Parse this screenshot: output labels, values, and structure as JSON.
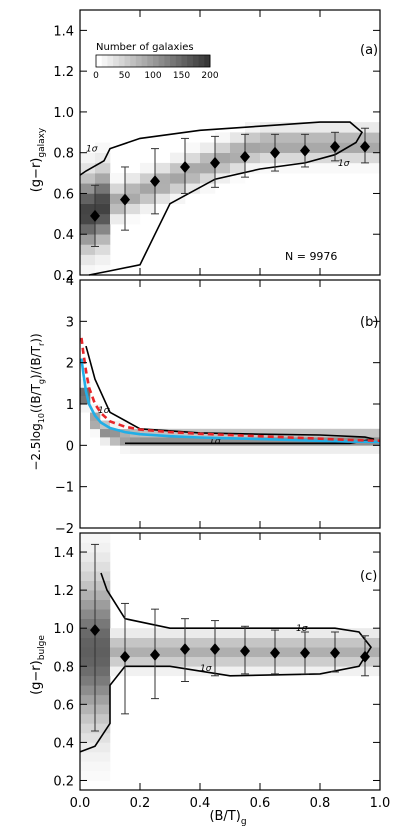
{
  "figure": {
    "x_axis_label": "(B/T)",
    "x_axis_label_sub": "g",
    "x_ticks": [
      "0.0",
      "0.2",
      "0.4",
      "0.6",
      "0.8",
      "1.0"
    ]
  },
  "chart_data": [
    {
      "type": "scatter",
      "panel": "(a)",
      "ylabel": "(g−r)",
      "ylabel_sub": "galaxy",
      "xlim": [
        0,
        1
      ],
      "ylim": [
        0.2,
        1.5
      ],
      "yticks": [
        "0.2",
        "0.4",
        "0.6",
        "0.8",
        "1.0",
        "1.2",
        "1.4"
      ],
      "colorbar_title": "Number of galaxies",
      "colorbar_ticks": [
        "0",
        "50",
        "100",
        "150",
        "200"
      ],
      "colorbar_range": [
        0,
        200
      ],
      "annotation": "N = 9976",
      "contour_label": "1σ",
      "points": [
        {
          "x": 0.05,
          "y": 0.49,
          "ylo": 0.34,
          "yhi": 0.64
        },
        {
          "x": 0.15,
          "y": 0.57,
          "ylo": 0.42,
          "yhi": 0.73
        },
        {
          "x": 0.25,
          "y": 0.66,
          "ylo": 0.5,
          "yhi": 0.82
        },
        {
          "x": 0.35,
          "y": 0.73,
          "ylo": 0.6,
          "yhi": 0.87
        },
        {
          "x": 0.45,
          "y": 0.75,
          "ylo": 0.63,
          "yhi": 0.88
        },
        {
          "x": 0.55,
          "y": 0.78,
          "ylo": 0.68,
          "yhi": 0.89
        },
        {
          "x": 0.65,
          "y": 0.8,
          "ylo": 0.71,
          "yhi": 0.89
        },
        {
          "x": 0.75,
          "y": 0.81,
          "ylo": 0.73,
          "yhi": 0.89
        },
        {
          "x": 0.85,
          "y": 0.83,
          "ylo": 0.76,
          "yhi": 0.9
        },
        {
          "x": 0.95,
          "y": 0.83,
          "ylo": 0.75,
          "yhi": 0.92
        }
      ]
    },
    {
      "type": "line",
      "panel": "(b)",
      "ylabel": "−2.5log",
      "ylabel_sub": "10",
      "ylabel_rest": "((B/T",
      "ylabel_sub2": "g",
      "ylabel_rest2": ")/(B/T",
      "ylabel_sub3": "r",
      "ylabel_rest3": "))",
      "xlim": [
        0,
        1
      ],
      "ylim": [
        -2,
        4
      ],
      "yticks": [
        "−2",
        "−1",
        "0",
        "1",
        "2",
        "3",
        "4"
      ],
      "contour_label": "1σ",
      "series": [
        {
          "color": "#22aee6",
          "x": [
            0.005,
            0.01,
            0.02,
            0.03,
            0.05,
            0.07,
            0.1,
            0.15,
            0.2,
            0.3,
            0.4,
            0.5,
            0.6,
            0.7,
            0.8,
            0.9,
            1.0
          ],
          "y": [
            2.1,
            1.8,
            1.3,
            1.0,
            0.72,
            0.55,
            0.42,
            0.32,
            0.27,
            0.22,
            0.19,
            0.17,
            0.15,
            0.13,
            0.11,
            0.09,
            0.08
          ]
        },
        {
          "color": "#e8262a",
          "dashed": true,
          "x": [
            0.005,
            0.01,
            0.02,
            0.03,
            0.05,
            0.07,
            0.1,
            0.15,
            0.2,
            0.3,
            0.4,
            0.5,
            0.6,
            0.7,
            0.8,
            0.9,
            1.0
          ],
          "y": [
            2.6,
            2.3,
            1.8,
            1.4,
            1.0,
            0.78,
            0.58,
            0.45,
            0.38,
            0.32,
            0.28,
            0.25,
            0.22,
            0.19,
            0.16,
            0.13,
            0.11
          ]
        }
      ]
    },
    {
      "type": "scatter",
      "panel": "(c)",
      "ylabel": "(g−r)",
      "ylabel_sub": "bulge",
      "xlim": [
        0,
        1
      ],
      "ylim": [
        0.15,
        1.5
      ],
      "yticks": [
        "0.2",
        "0.4",
        "0.6",
        "0.8",
        "1.0",
        "1.2",
        "1.4"
      ],
      "contour_label": "1σ",
      "points": [
        {
          "x": 0.05,
          "y": 0.99,
          "ylo": 0.46,
          "yhi": 1.44
        },
        {
          "x": 0.15,
          "y": 0.85,
          "ylo": 0.55,
          "yhi": 1.13
        },
        {
          "x": 0.25,
          "y": 0.86,
          "ylo": 0.63,
          "yhi": 1.1
        },
        {
          "x": 0.35,
          "y": 0.89,
          "ylo": 0.72,
          "yhi": 1.05
        },
        {
          "x": 0.45,
          "y": 0.89,
          "ylo": 0.75,
          "yhi": 1.04
        },
        {
          "x": 0.55,
          "y": 0.88,
          "ylo": 0.76,
          "yhi": 1.01
        },
        {
          "x": 0.65,
          "y": 0.87,
          "ylo": 0.76,
          "yhi": 0.99
        },
        {
          "x": 0.75,
          "y": 0.87,
          "ylo": 0.76,
          "yhi": 0.98
        },
        {
          "x": 0.85,
          "y": 0.87,
          "ylo": 0.77,
          "yhi": 0.98
        },
        {
          "x": 0.95,
          "y": 0.85,
          "ylo": 0.75,
          "yhi": 0.96
        }
      ]
    }
  ]
}
